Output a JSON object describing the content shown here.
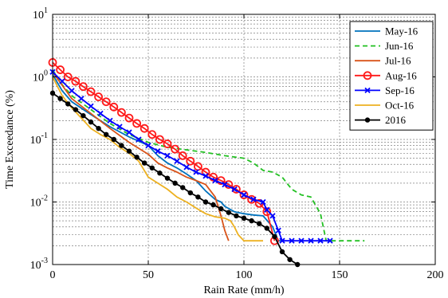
{
  "chart_data": {
    "type": "line",
    "xlabel": "Rain Rate (mm/h)",
    "ylabel": "Time Exceedance (%)",
    "xlim": [
      0,
      200
    ],
    "ylim": [
      0.001,
      10
    ],
    "yscale": "log",
    "xticks": [
      0,
      50,
      100,
      150,
      200
    ],
    "xtick_labels": [
      "0",
      "50",
      "100",
      "150",
      "200"
    ],
    "ytick_mantissa": [
      "10",
      "10",
      "10",
      "10",
      "10"
    ],
    "ytick_exponents": [
      "-3",
      "-2",
      "-1",
      "0",
      "1"
    ],
    "grid": "dashed",
    "legend_position": "top-right",
    "series": [
      {
        "name": "May-16",
        "color": "#0072BD",
        "dash": "solid",
        "marker": "none",
        "x": [
          0,
          5,
          10,
          20,
          30,
          40,
          50,
          55,
          60,
          65,
          70,
          75,
          80,
          85,
          88,
          90,
          95,
          100,
          105,
          110,
          115,
          118,
          120
        ],
        "y": [
          1.1,
          0.6,
          0.4,
          0.25,
          0.16,
          0.11,
          0.08,
          0.055,
          0.042,
          0.035,
          0.028,
          0.022,
          0.015,
          0.011,
          0.01,
          0.0085,
          0.007,
          0.0065,
          0.0062,
          0.006,
          0.004,
          0.0024,
          0.0024
        ]
      },
      {
        "name": "Jun-16",
        "color": "#22C022",
        "dash": "dashed",
        "marker": "none",
        "x": [
          0,
          5,
          10,
          20,
          30,
          40,
          50,
          60,
          70,
          80,
          90,
          100,
          105,
          110,
          115,
          120,
          125,
          130,
          135,
          140,
          143,
          145,
          150,
          163
        ],
        "y": [
          1.3,
          0.75,
          0.5,
          0.3,
          0.18,
          0.12,
          0.09,
          0.075,
          0.068,
          0.062,
          0.055,
          0.05,
          0.042,
          0.032,
          0.03,
          0.025,
          0.016,
          0.013,
          0.012,
          0.0065,
          0.0024,
          0.0024,
          0.0024,
          0.0024
        ]
      },
      {
        "name": "Jul-16",
        "color": "#D95319",
        "dash": "solid",
        "marker": "none",
        "x": [
          0,
          10,
          20,
          30,
          40,
          50,
          55,
          60,
          65,
          70,
          75,
          80,
          85,
          88,
          90,
          92
        ],
        "y": [
          1.2,
          0.45,
          0.26,
          0.15,
          0.09,
          0.058,
          0.042,
          0.035,
          0.03,
          0.025,
          0.022,
          0.019,
          0.012,
          0.006,
          0.0035,
          0.0024
        ]
      },
      {
        "name": "Aug-16",
        "color": "#FF1A1A",
        "dash": "solid",
        "marker": "circle",
        "x": [
          0,
          4,
          8,
          12,
          16,
          20,
          24,
          28,
          32,
          36,
          40,
          44,
          48,
          52,
          56,
          60,
          64,
          68,
          72,
          76,
          80,
          84,
          88,
          92,
          96,
          100,
          104,
          108,
          112,
          116
        ],
        "y": [
          1.7,
          1.3,
          1.0,
          0.85,
          0.7,
          0.58,
          0.48,
          0.4,
          0.33,
          0.27,
          0.22,
          0.18,
          0.15,
          0.12,
          0.1,
          0.085,
          0.07,
          0.055,
          0.045,
          0.037,
          0.03,
          0.025,
          0.022,
          0.019,
          0.016,
          0.013,
          0.011,
          0.0095,
          0.007,
          0.0024
        ]
      },
      {
        "name": "Sep-16",
        "color": "#0000FF",
        "dash": "solid",
        "marker": "x",
        "x": [
          0,
          5,
          10,
          15,
          20,
          25,
          30,
          35,
          40,
          45,
          50,
          55,
          60,
          65,
          70,
          75,
          80,
          85,
          90,
          95,
          100,
          105,
          110,
          112,
          115,
          118,
          120,
          125,
          130,
          135,
          140,
          145
        ],
        "y": [
          1.2,
          0.85,
          0.6,
          0.45,
          0.34,
          0.26,
          0.2,
          0.16,
          0.13,
          0.1,
          0.08,
          0.065,
          0.055,
          0.045,
          0.036,
          0.03,
          0.026,
          0.022,
          0.019,
          0.016,
          0.013,
          0.011,
          0.01,
          0.0075,
          0.006,
          0.0035,
          0.0024,
          0.0024,
          0.0024,
          0.0024,
          0.0024,
          0.0024
        ]
      },
      {
        "name": "Oct-16",
        "color": "#EDB120",
        "dash": "solid",
        "marker": "none",
        "x": [
          0,
          5,
          10,
          15,
          20,
          25,
          30,
          35,
          40,
          45,
          50,
          55,
          60,
          65,
          70,
          75,
          80,
          85,
          90,
          93,
          95,
          97,
          100,
          105,
          110
        ],
        "y": [
          1.0,
          0.5,
          0.32,
          0.22,
          0.15,
          0.12,
          0.1,
          0.075,
          0.06,
          0.045,
          0.025,
          0.02,
          0.016,
          0.012,
          0.01,
          0.008,
          0.0065,
          0.0058,
          0.0055,
          0.005,
          0.004,
          0.003,
          0.0024,
          0.0024,
          0.0024
        ]
      },
      {
        "name": "2016",
        "color": "#000000",
        "dash": "solid",
        "marker": "dot",
        "x": [
          0,
          4,
          8,
          12,
          16,
          20,
          24,
          28,
          32,
          36,
          40,
          44,
          48,
          52,
          56,
          60,
          64,
          68,
          72,
          76,
          80,
          84,
          88,
          92,
          96,
          100,
          104,
          108,
          112,
          116,
          120,
          124,
          128
        ],
        "y": [
          0.55,
          0.45,
          0.37,
          0.3,
          0.24,
          0.19,
          0.15,
          0.12,
          0.1,
          0.08,
          0.065,
          0.052,
          0.042,
          0.035,
          0.029,
          0.024,
          0.02,
          0.017,
          0.014,
          0.012,
          0.01,
          0.009,
          0.0078,
          0.0068,
          0.006,
          0.0055,
          0.005,
          0.0045,
          0.0038,
          0.0028,
          0.0016,
          0.0012,
          0.001
        ]
      }
    ]
  }
}
